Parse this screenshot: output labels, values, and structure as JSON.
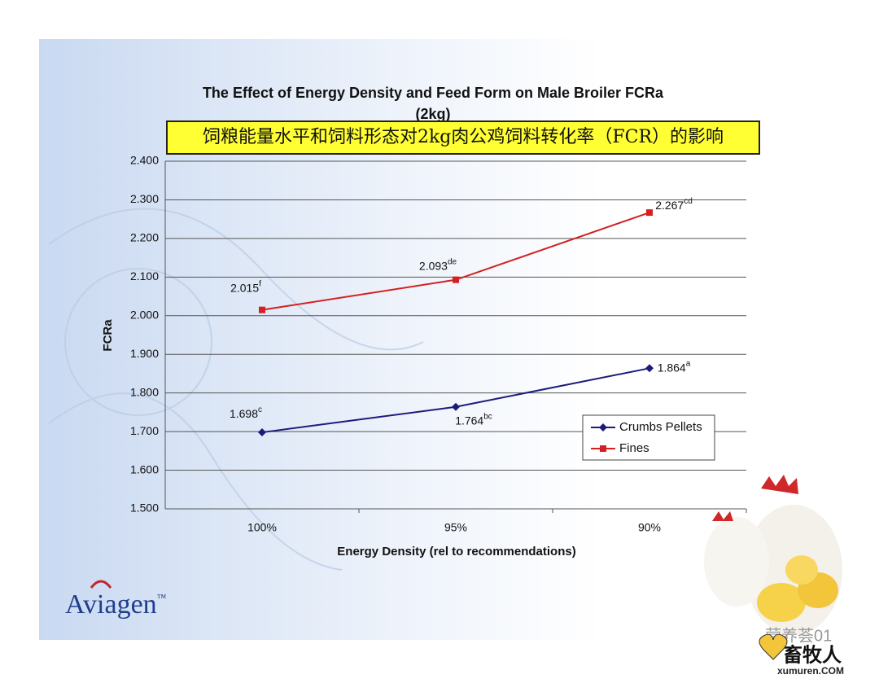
{
  "chart_data": {
    "type": "line",
    "title_lines": [
      "The Effect of Energy Density and Feed Form on Male Broiler FCRa",
      "(2kg)"
    ],
    "subtitle": "饲粮能量水平和饲料形态对2kg肉公鸡饲料转化率（FCR）的影响",
    "x_label": "Energy Density (rel to recommendations)",
    "y_label": "FCRa",
    "categories": [
      "100%",
      "95%",
      "90%"
    ],
    "series": [
      {
        "name": "Crumbs Pellets",
        "color": "#1c1c78",
        "marker": "diamond",
        "values": [
          1.698,
          1.764,
          1.864
        ],
        "value_labels": [
          "1.698",
          "1.764",
          "1.864"
        ],
        "label_superscripts": [
          "c",
          "bc",
          "a"
        ]
      },
      {
        "name": "Fines",
        "color": "#d42020",
        "marker": "square",
        "values": [
          2.015,
          2.093,
          2.267
        ],
        "value_labels": [
          "2.015",
          "2.093",
          "2.267"
        ],
        "label_superscripts": [
          "f",
          "de",
          "cd"
        ]
      }
    ],
    "ylim": [
      1.5,
      2.4
    ],
    "yticks": [
      {
        "value": 1.5,
        "label": "1.500"
      },
      {
        "value": 1.6,
        "label": "1.600"
      },
      {
        "value": 1.7,
        "label": "1.700"
      },
      {
        "value": 1.8,
        "label": "1.800"
      },
      {
        "value": 1.9,
        "label": "1.900"
      },
      {
        "value": 2.0,
        "label": "2.000"
      },
      {
        "value": 2.1,
        "label": "2.100"
      },
      {
        "value": 2.2,
        "label": "2.200"
      },
      {
        "value": 2.3,
        "label": "2.300"
      },
      {
        "value": 2.4,
        "label": "2.400"
      }
    ],
    "grid": true,
    "legend_position": "lower right"
  },
  "logo": {
    "name": "Aviagen",
    "mark": "™"
  },
  "watermark": {
    "account": "营养荟01",
    "site_name": "畜牧人",
    "site_url": "xumuren.COM"
  }
}
